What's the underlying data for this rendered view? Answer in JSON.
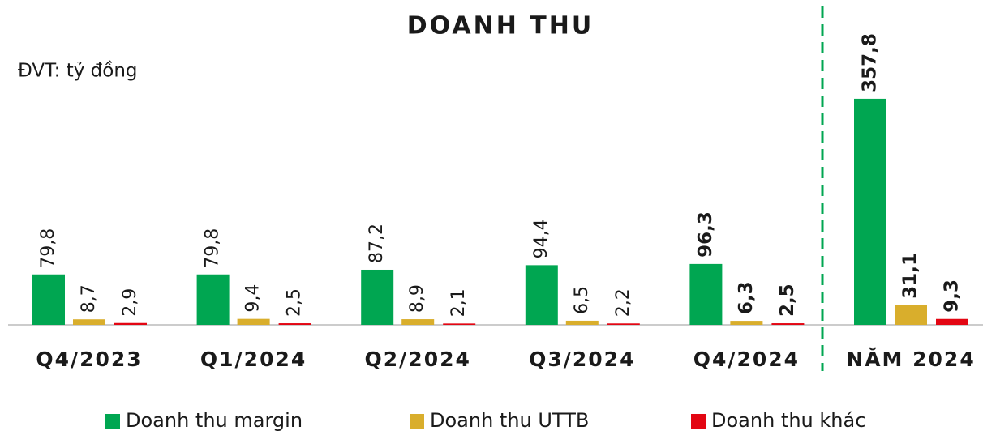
{
  "chart_data": {
    "type": "bar",
    "title": "DOANH THU",
    "unit": "ĐVT: tỷ đồng",
    "categories": [
      "Q4/2023",
      "Q1/2024",
      "Q2/2024",
      "Q3/2024",
      "Q4/2024",
      "NĂM 2024"
    ],
    "series": [
      {
        "name": "Doanh thu margin",
        "color": "#00a651",
        "values": [
          79.8,
          79.8,
          87.2,
          94.4,
          96.3,
          357.8
        ],
        "value_labels": [
          "79,8",
          "79,8",
          "87,2",
          "94,4",
          "96,3",
          "357,8"
        ]
      },
      {
        "name": "Doanh thu UTTB",
        "color": "#d9ae2c",
        "values": [
          8.7,
          9.4,
          8.9,
          6.5,
          6.3,
          31.1
        ],
        "value_labels": [
          "8,7",
          "9,4",
          "8,9",
          "6,5",
          "6,3",
          "31,1"
        ]
      },
      {
        "name": "Doanh thu khác",
        "color": "#e30613",
        "values": [
          2.9,
          2.5,
          2.1,
          2.2,
          2.5,
          9.3
        ],
        "value_labels": [
          "2,9",
          "2,5",
          "2,1",
          "2,2",
          "2,5",
          "9,3"
        ]
      }
    ],
    "ylim": [
      0,
      400
    ]
  }
}
